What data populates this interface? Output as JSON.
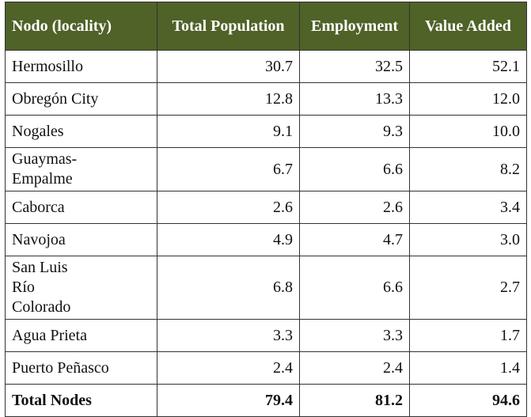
{
  "table": {
    "header": [
      "Nodo (locality)",
      "Total Population",
      "Employment",
      "Value Added"
    ],
    "rows": [
      [
        "Hermosillo",
        "30.7",
        "32.5",
        "52.1"
      ],
      [
        "Obregón City",
        "12.8",
        "13.3",
        "12.0"
      ],
      [
        "Nogales",
        "9.1",
        "9.3",
        "10.0"
      ],
      [
        "Guaymas-Empalme",
        "6.7",
        "6.6",
        "8.2"
      ],
      [
        "Caborca",
        "2.6",
        "2.6",
        "3.4"
      ],
      [
        "Navojoa",
        "4.9",
        "4.7",
        "3.0"
      ],
      [
        "San Luis Río Colorado",
        "6.8",
        "6.6",
        "2.7"
      ],
      [
        "Agua Prieta",
        "3.3",
        "3.3",
        "1.7"
      ],
      [
        "Puerto Peñasco",
        "2.4",
        "2.4",
        "1.4"
      ]
    ],
    "total": [
      "Total Nodes",
      "79.4",
      "81.2",
      "94.6"
    ]
  }
}
